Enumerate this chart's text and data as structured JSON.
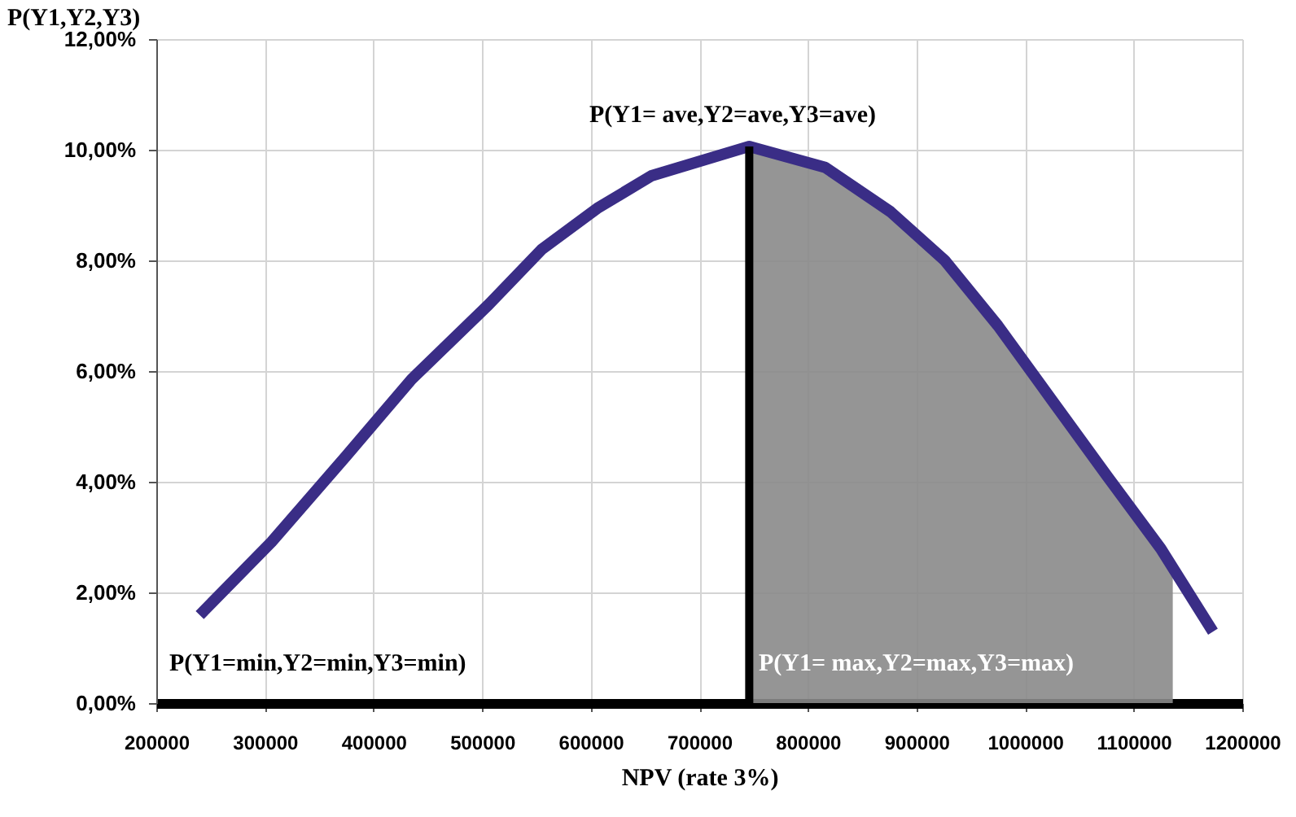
{
  "chart_data": {
    "type": "line",
    "xlabel": "NPV (rate 3%)",
    "ylabel": "P(Y1,Y2,Y3)",
    "xlim": [
      200000,
      1200000
    ],
    "xticks": [
      200000,
      300000,
      400000,
      500000,
      600000,
      700000,
      800000,
      900000,
      1000000,
      1100000,
      1200000
    ],
    "ylim": [
      0,
      12
    ],
    "yticks": [
      {
        "value": 0,
        "label": "0,00%"
      },
      {
        "value": 2,
        "label": "2,00%"
      },
      {
        "value": 4,
        "label": "4,00%"
      },
      {
        "value": 6,
        "label": "6,00%"
      },
      {
        "value": 8,
        "label": "8,00%"
      },
      {
        "value": 10,
        "label": "10,00%"
      },
      {
        "value": 12,
        "label": "12,00%"
      }
    ],
    "grid": true,
    "series": [
      {
        "type": "area",
        "color": "#8a8a8a",
        "x": [
          746000,
          816000,
          876000,
          926000,
          975000,
          1026000,
          1076000,
          1125000,
          1136000
        ],
        "values": [
          10.06,
          9.68,
          8.88,
          8.0,
          6.82,
          5.44,
          4.09,
          2.79,
          2.4
        ]
      },
      {
        "color": "#3a2d86",
        "x": [
          240000,
          306000,
          375000,
          435000,
          506000,
          555000,
          606000,
          656000,
          746000,
          816000,
          876000,
          926000,
          975000,
          1026000,
          1076000,
          1125000,
          1173000
        ],
        "values": [
          1.59,
          2.91,
          4.47,
          5.85,
          7.2,
          8.2,
          8.94,
          9.53,
          10.06,
          9.68,
          8.88,
          8.0,
          6.82,
          5.44,
          4.09,
          2.79,
          1.29
        ]
      },
      {
        "color": "#000000",
        "x": [
          746000,
          746000
        ],
        "values": [
          0,
          10.06
        ]
      }
    ],
    "annotations": [
      "P(Y1= ave,Y2=ave,Y3=ave)",
      "P(Y1=min,Y2=min,Y3=min)",
      "P(Y1= max,Y2=max,Y3=max)"
    ]
  }
}
